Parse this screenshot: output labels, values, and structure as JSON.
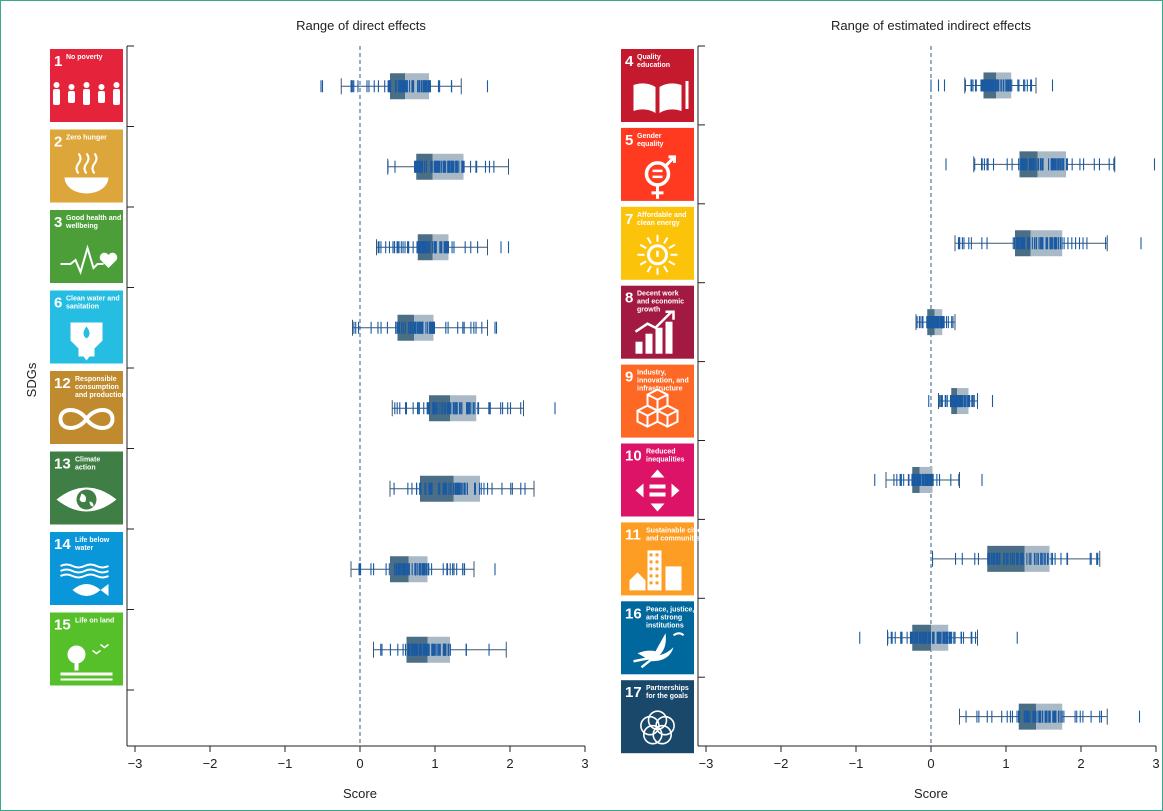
{
  "chart_data": [
    {
      "type": "boxplot",
      "title": "Range of direct effects",
      "xlabel": "Score",
      "ylabel": "SDGs",
      "xlim": [
        -3,
        3
      ],
      "xticks": [
        "−3",
        "−2",
        "−1",
        "0",
        "1",
        "2",
        "3"
      ],
      "reference_line": 0,
      "rows": [
        {
          "num": "1",
          "label": [
            "No poverty"
          ],
          "color": "#e5243b",
          "icon": "family-icon",
          "whisker": [
            -0.25,
            1.35
          ],
          "q1": 0.4,
          "median": 0.6,
          "q3": 0.92,
          "outliers": [
            -0.52,
            -0.5,
            1.7
          ]
        },
        {
          "num": "2",
          "label": [
            "Zero hunger"
          ],
          "color": "#dda63a",
          "icon": "bowl-icon",
          "whisker": [
            0.37,
            1.98
          ],
          "q1": 0.75,
          "median": 0.97,
          "q3": 1.38,
          "outliers": []
        },
        {
          "num": "3",
          "label": [
            "Good health and",
            "wellbeing"
          ],
          "color": "#4c9f38",
          "icon": "heartbeat-icon",
          "whisker": [
            0.22,
            1.7
          ],
          "q1": 0.77,
          "median": 0.97,
          "q3": 1.18,
          "outliers": [
            1.88,
            1.98
          ]
        },
        {
          "num": "6",
          "label": [
            "Clean water and",
            "sanitation"
          ],
          "color": "#26bde2",
          "icon": "water-icon",
          "whisker": [
            -0.1,
            1.7
          ],
          "q1": 0.5,
          "median": 0.72,
          "q3": 0.98,
          "outliers": [
            1.8,
            1.82
          ]
        },
        {
          "num": "12",
          "label": [
            "Responsible",
            "consumption",
            "and production"
          ],
          "color": "#bf8b2e",
          "icon": "infinity-icon",
          "whisker": [
            0.43,
            2.18
          ],
          "q1": 0.92,
          "median": 1.2,
          "q3": 1.55,
          "outliers": [
            2.6
          ]
        },
        {
          "num": "13",
          "label": [
            "Climate",
            "action"
          ],
          "color": "#3f7e44",
          "icon": "eye-globe-icon",
          "whisker": [
            0.4,
            2.32
          ],
          "q1": 0.8,
          "median": 1.25,
          "q3": 1.6,
          "outliers": []
        },
        {
          "num": "14",
          "label": [
            "Life below",
            "water"
          ],
          "color": "#0a97d9",
          "icon": "fish-icon",
          "whisker": [
            -0.12,
            1.52
          ],
          "q1": 0.4,
          "median": 0.65,
          "q3": 0.9,
          "outliers": [
            1.8
          ]
        },
        {
          "num": "15",
          "label": [
            "Life on land"
          ],
          "color": "#56c02b",
          "icon": "tree-icon",
          "whisker": [
            0.18,
            1.95
          ],
          "q1": 0.62,
          "median": 0.9,
          "q3": 1.2,
          "outliers": []
        }
      ]
    },
    {
      "type": "boxplot",
      "title": "Range of estimated indirect effects",
      "xlabel": "Score",
      "xlim": [
        -3,
        3
      ],
      "xticks": [
        "−3",
        "−2",
        "−1",
        "0",
        "1",
        "2",
        "3"
      ],
      "reference_line": 0,
      "rows": [
        {
          "num": "4",
          "label": [
            "Quality",
            "education"
          ],
          "color": "#c5192d",
          "icon": "book-icon",
          "whisker": [
            0.45,
            1.4
          ],
          "q1": 0.7,
          "median": 0.87,
          "q3": 1.07,
          "outliers": [
            0.0,
            0.1,
            0.18,
            1.62
          ]
        },
        {
          "num": "5",
          "label": [
            "Gender",
            "equality"
          ],
          "color": "#ff3a21",
          "icon": "gender-icon",
          "whisker": [
            0.57,
            2.45
          ],
          "q1": 1.18,
          "median": 1.42,
          "q3": 1.8,
          "outliers": [
            0.2,
            2.98
          ]
        },
        {
          "num": "7",
          "label": [
            "Affordable and",
            "clean energy"
          ],
          "color": "#fcc30b",
          "icon": "sun-icon",
          "whisker": [
            0.32,
            2.35
          ],
          "q1": 1.12,
          "median": 1.33,
          "q3": 1.75,
          "outliers": [
            2.8
          ]
        },
        {
          "num": "8",
          "label": [
            "Decent work",
            "and economic",
            "growth"
          ],
          "color": "#a21942",
          "icon": "growth-chart-icon",
          "whisker": [
            -0.2,
            0.32
          ],
          "q1": -0.05,
          "median": 0.05,
          "q3": 0.15,
          "outliers": []
        },
        {
          "num": "9",
          "label": [
            "Industry,",
            "innovation, and",
            "infrastructure"
          ],
          "color": "#fd6925",
          "icon": "cubes-icon",
          "whisker": [
            0.1,
            0.62
          ],
          "q1": 0.27,
          "median": 0.35,
          "q3": 0.5,
          "outliers": [
            -0.03,
            0.82
          ]
        },
        {
          "num": "10",
          "label": [
            "Reduced",
            "inequalities"
          ],
          "color": "#dd1367",
          "icon": "equal-arrows-icon",
          "whisker": [
            -0.6,
            0.38
          ],
          "q1": -0.25,
          "median": -0.15,
          "q3": 0.02,
          "outliers": [
            -0.75,
            0.68
          ]
        },
        {
          "num": "11",
          "label": [
            "Sustainable cities",
            "and communities"
          ],
          "color": "#fd9d24",
          "icon": "buildings-icon",
          "whisker": [
            0.02,
            2.25
          ],
          "q1": 0.75,
          "median": 1.25,
          "q3": 1.58,
          "outliers": []
        },
        {
          "num": "16",
          "label": [
            "Peace, justice,",
            "and strong",
            "institutions"
          ],
          "color": "#00689d",
          "icon": "dove-icon",
          "whisker": [
            -0.58,
            0.62
          ],
          "q1": -0.25,
          "median": 0.0,
          "q3": 0.23,
          "outliers": [
            -0.95,
            1.15
          ]
        },
        {
          "num": "17",
          "label": [
            "Partnerships",
            "for the goals"
          ],
          "color": "#19486a",
          "icon": "flower-icon",
          "whisker": [
            0.38,
            2.35
          ],
          "q1": 1.17,
          "median": 1.4,
          "q3": 1.75,
          "outliers": [
            2.78
          ]
        }
      ]
    }
  ]
}
